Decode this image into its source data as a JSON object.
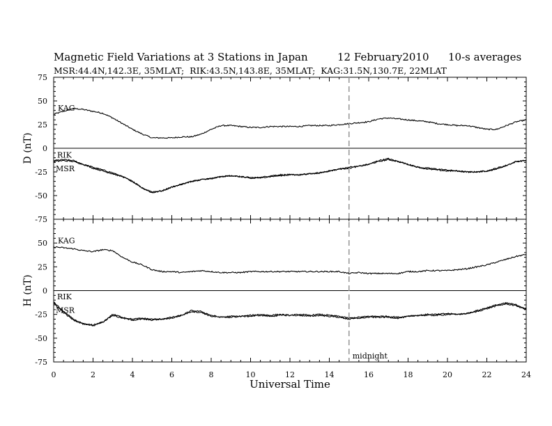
{
  "header": {
    "title": "Magnetic Field Variations at 3 Stations in Japan",
    "date": "12 February2010",
    "averaging": "10-s averages",
    "stations": "MSR:44.4N,142.3E, 35MLAT;  RIK:43.5N,143.8E, 35MLAT;  KAG:31.5N,130.7E, 22MLAT"
  },
  "chart_data": [
    {
      "type": "line",
      "ylabel": "D (nT)",
      "ylim": [
        -75,
        75
      ],
      "yticks": [
        -75,
        -50,
        -25,
        0,
        25,
        50,
        75
      ],
      "xlim": [
        0,
        24
      ],
      "series": [
        {
          "name": "KAG",
          "x": [
            0,
            0.5,
            1,
            1.5,
            2,
            2.5,
            3,
            3.5,
            4,
            4.5,
            5,
            5.5,
            6,
            6.5,
            7,
            7.5,
            8,
            8.5,
            9,
            9.5,
            10,
            10.5,
            11,
            11.5,
            12,
            12.5,
            13,
            13.5,
            14,
            14.5,
            15,
            15.5,
            16,
            16.5,
            17,
            17.5,
            18,
            18.5,
            19,
            19.5,
            20,
            20.5,
            21,
            21.5,
            22,
            22.5,
            23,
            23.5,
            24
          ],
          "y": [
            36,
            39,
            42,
            41,
            39,
            37,
            32,
            26,
            20,
            15,
            11,
            11,
            11,
            12,
            12,
            15,
            20,
            24,
            24,
            23,
            22,
            22,
            23,
            23,
            23,
            23,
            24,
            24,
            24,
            25,
            26,
            27,
            28,
            31,
            32,
            31,
            30,
            29,
            28,
            26,
            25,
            24,
            24,
            22,
            20,
            20,
            24,
            28,
            30
          ]
        },
        {
          "name": "RIK",
          "x": [
            0,
            0.5,
            1,
            1.5,
            2,
            2.5,
            3,
            3.5,
            4,
            4.5,
            5,
            5.5,
            6,
            6.5,
            7,
            7.5,
            8,
            8.5,
            9,
            9.5,
            10,
            10.5,
            11,
            11.5,
            12,
            12.5,
            13,
            13.5,
            14,
            14.5,
            15,
            15.5,
            16,
            16.5,
            17,
            17.5,
            18,
            18.5,
            19,
            19.5,
            20,
            20.5,
            21,
            21.5,
            22,
            22.5,
            23,
            23.5,
            24
          ],
          "y": [
            -13,
            -12,
            -13,
            -17,
            -20,
            -23,
            -26,
            -30,
            -35,
            -42,
            -47,
            -45,
            -41,
            -38,
            -35,
            -33,
            -32,
            -30,
            -29,
            -30,
            -31,
            -31,
            -29,
            -28,
            -28,
            -28,
            -27,
            -26,
            -24,
            -22,
            -20,
            -19,
            -17,
            -13,
            -11,
            -14,
            -17,
            -20,
            -21,
            -22,
            -23,
            -24,
            -25,
            -25,
            -24,
            -21,
            -18,
            -14,
            -13
          ]
        },
        {
          "name": "MSR",
          "x": [
            0,
            0.5,
            1,
            1.5,
            2,
            2.5,
            3,
            3.5,
            4,
            4.5,
            5,
            5.5,
            6,
            6.5,
            7,
            7.5,
            8,
            8.5,
            9,
            9.5,
            10,
            10.5,
            11,
            11.5,
            12,
            12.5,
            13,
            13.5,
            14,
            14.5,
            15,
            15.5,
            16,
            16.5,
            17,
            17.5,
            18,
            18.5,
            19,
            19.5,
            20,
            20.5,
            21,
            21.5,
            22,
            22.5,
            23,
            23.5,
            24
          ],
          "y": [
            -14,
            -13,
            -14,
            -17,
            -21,
            -24,
            -27,
            -30,
            -35,
            -42,
            -46,
            -45,
            -41,
            -38,
            -35,
            -33,
            -32,
            -30,
            -29,
            -30,
            -32,
            -31,
            -30,
            -29,
            -28,
            -28,
            -27,
            -26,
            -24,
            -22,
            -21,
            -19,
            -17,
            -14,
            -12,
            -14,
            -17,
            -20,
            -22,
            -23,
            -24,
            -24,
            -25,
            -25,
            -24,
            -22,
            -18,
            -14,
            -13
          ]
        }
      ]
    },
    {
      "type": "line",
      "ylabel": "H (nT)",
      "ylim": [
        -75,
        75
      ],
      "yticks": [
        -75,
        -50,
        -25,
        0,
        25,
        50,
        75
      ],
      "xlim": [
        0,
        24
      ],
      "xlabel": "Universal Time",
      "xticks": [
        0,
        2,
        4,
        6,
        8,
        10,
        12,
        14,
        16,
        18,
        20,
        22,
        24
      ],
      "series": [
        {
          "name": "KAG",
          "x": [
            0,
            0.5,
            1,
            1.5,
            2,
            2.5,
            3,
            3.5,
            4,
            4.5,
            5,
            5.5,
            6,
            6.5,
            7,
            7.5,
            8,
            8.5,
            9,
            9.5,
            10,
            10.5,
            11,
            11.5,
            12,
            12.5,
            13,
            13.5,
            14,
            14.5,
            15,
            15.5,
            16,
            16.5,
            17,
            17.5,
            18,
            18.5,
            19,
            19.5,
            20,
            20.5,
            21,
            21.5,
            22,
            22.5,
            23,
            23.5,
            24
          ],
          "y": [
            46,
            45,
            44,
            42,
            41,
            43,
            42,
            35,
            30,
            27,
            22,
            20,
            20,
            19,
            20,
            21,
            20,
            19,
            19,
            19,
            20,
            20,
            20,
            20,
            20,
            20,
            20,
            20,
            20,
            20,
            18,
            19,
            18,
            18,
            18,
            18,
            20,
            20,
            21,
            21,
            21,
            22,
            23,
            25,
            27,
            30,
            33,
            36,
            38
          ]
        },
        {
          "name": "RIK",
          "x": [
            0,
            0.5,
            1,
            1.5,
            2,
            2.5,
            3,
            3.5,
            4,
            4.5,
            5,
            5.5,
            6,
            6.5,
            7,
            7.5,
            8,
            8.5,
            9,
            9.5,
            10,
            10.5,
            11,
            11.5,
            12,
            12.5,
            13,
            13.5,
            14,
            14.5,
            15,
            15.5,
            16,
            16.5,
            17,
            17.5,
            18,
            18.5,
            19,
            19.5,
            20,
            20.5,
            21,
            21.5,
            22,
            22.5,
            23,
            23.5,
            24
          ],
          "y": [
            -12,
            -22,
            -30,
            -35,
            -37,
            -33,
            -25,
            -28,
            -30,
            -29,
            -30,
            -30,
            -28,
            -26,
            -21,
            -22,
            -26,
            -28,
            -27,
            -27,
            -26,
            -25,
            -26,
            -25,
            -26,
            -25,
            -26,
            -25,
            -26,
            -27,
            -29,
            -28,
            -27,
            -27,
            -27,
            -28,
            -27,
            -26,
            -25,
            -25,
            -24,
            -25,
            -24,
            -21,
            -18,
            -15,
            -13,
            -15,
            -19
          ]
        },
        {
          "name": "MSR",
          "x": [
            0,
            0.5,
            1,
            1.5,
            2,
            2.5,
            3,
            3.5,
            4,
            4.5,
            5,
            5.5,
            6,
            6.5,
            7,
            7.5,
            8,
            8.5,
            9,
            9.5,
            10,
            10.5,
            11,
            11.5,
            12,
            12.5,
            13,
            13.5,
            14,
            14.5,
            15,
            15.5,
            16,
            16.5,
            17,
            17.5,
            18,
            18.5,
            19,
            19.5,
            20,
            20.5,
            21,
            21.5,
            22,
            22.5,
            23,
            23.5,
            24
          ],
          "y": [
            -13,
            -23,
            -31,
            -35,
            -36,
            -33,
            -26,
            -29,
            -31,
            -30,
            -31,
            -30,
            -29,
            -26,
            -22,
            -23,
            -27,
            -28,
            -28,
            -27,
            -27,
            -26,
            -27,
            -26,
            -26,
            -26,
            -27,
            -26,
            -27,
            -28,
            -30,
            -29,
            -28,
            -28,
            -28,
            -29,
            -27,
            -26,
            -26,
            -26,
            -25,
            -25,
            -24,
            -22,
            -19,
            -16,
            -14,
            -16,
            -20
          ]
        }
      ]
    }
  ],
  "annotation": {
    "text": "midnight",
    "x": 15
  }
}
